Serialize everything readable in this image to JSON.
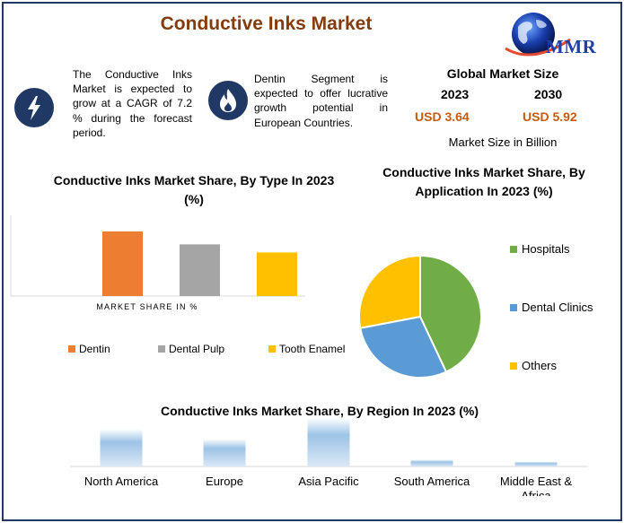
{
  "header": {
    "title": "Conductive Inks Market",
    "logo_text": "MMR"
  },
  "info": {
    "cagr_text": "The Conductive Inks Market is expected to grow at a CAGR of 7.2 % during the forecast period.",
    "segment_text": "Dentin Segment is expected to offer lucrative growth potential in European Countries.",
    "icons": [
      "lightning-icon",
      "flame-icon"
    ]
  },
  "global_market": {
    "title": "Global Market Size",
    "year1": "2023",
    "year2": "2030",
    "value1": "USD 3.64",
    "value2": "USD 5.92",
    "unit": "Market Size in Billion"
  },
  "chart_data": [
    {
      "type": "bar",
      "title": "Conductive Inks Market Share, By Type In 2023 (%)",
      "xlabel": "MARKET SHARE IN %",
      "categories": [
        "Dentin",
        "Dental Pulp",
        "Tooth Enamel"
      ],
      "values": [
        40,
        32,
        27
      ],
      "colors": [
        "#ed7d31",
        "#a5a5a5",
        "#ffc000"
      ],
      "ylim": [
        0,
        50
      ],
      "legend": "bottom"
    },
    {
      "type": "pie",
      "title": "Conductive Inks Market Share, By Application In 2023 (%)",
      "labels": [
        "Hospitals",
        "Dental Clinics",
        "Others"
      ],
      "values": [
        43,
        29,
        28
      ],
      "colors": [
        "#70ad47",
        "#5b9bd5",
        "#ffc000"
      ],
      "legend": "right"
    },
    {
      "type": "bar",
      "title": "Conductive Inks Market Share, By Region In 2023 (%)",
      "categories": [
        "North America",
        "Europe",
        "Asia Pacific",
        "South America",
        "Middle East & Africa"
      ],
      "values": [
        38,
        28,
        49,
        7,
        5
      ],
      "color": "#9dc3e6",
      "ylim": [
        0,
        50
      ]
    }
  ]
}
